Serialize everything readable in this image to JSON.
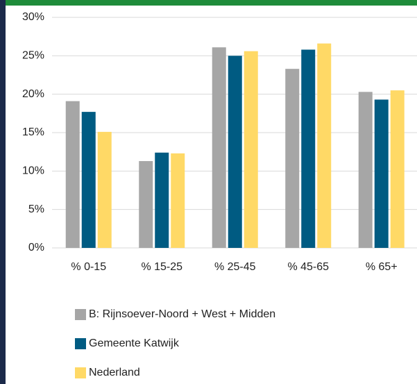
{
  "chart_data": {
    "type": "bar",
    "categories": [
      "% 0-15",
      "% 15-25",
      "% 25-45",
      "% 45-65",
      "% 65+"
    ],
    "series": [
      {
        "name": "B: Rijnsoever-Noord + West + Midden",
        "color": "#a6a6a6",
        "values": [
          19.1,
          11.3,
          26.1,
          23.3,
          20.3
        ]
      },
      {
        "name": "Gemeente Katwijk",
        "color": "#005b82",
        "values": [
          17.7,
          12.4,
          25.0,
          25.8,
          19.3
        ]
      },
      {
        "name": "Nederland",
        "color": "#ffd966",
        "values": [
          15.1,
          12.3,
          25.6,
          26.6,
          20.5
        ]
      }
    ],
    "ylim": [
      0,
      30
    ],
    "yticks": [
      {
        "value": 0,
        "label": "0%"
      },
      {
        "value": 5,
        "label": "5%"
      },
      {
        "value": 10,
        "label": "10%"
      },
      {
        "value": 15,
        "label": "15%"
      },
      {
        "value": 20,
        "label": "20%"
      },
      {
        "value": 25,
        "label": "25%"
      },
      {
        "value": 30,
        "label": "30%"
      }
    ],
    "grid": true
  }
}
